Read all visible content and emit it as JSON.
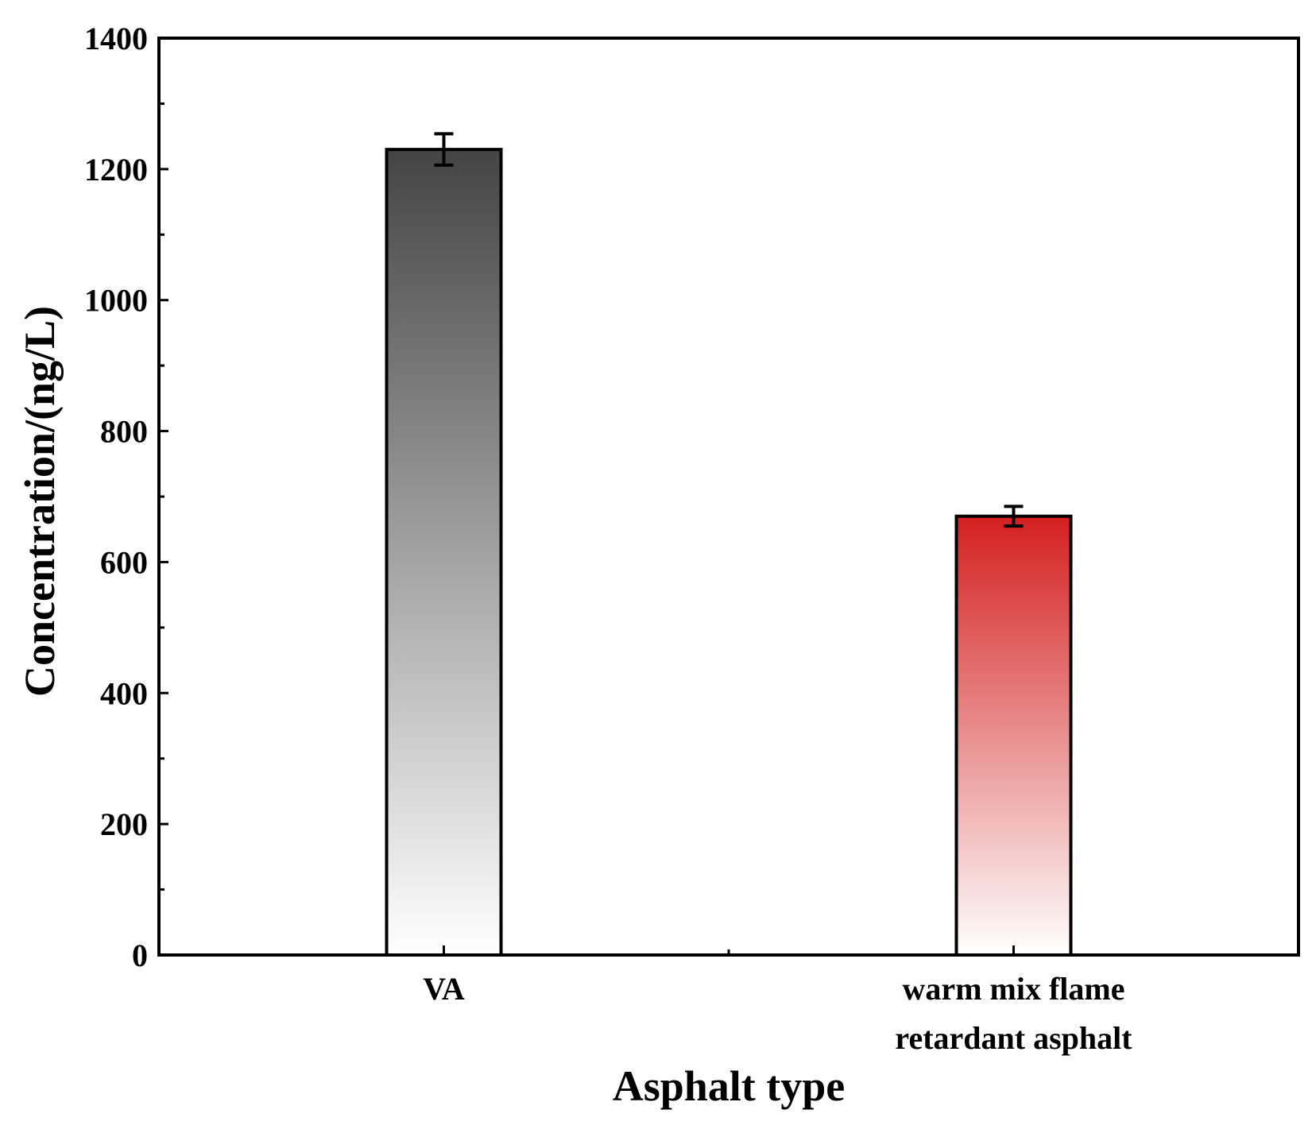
{
  "chart_data": {
    "type": "bar",
    "categories": [
      "VA",
      "warm mix flame retardant asphalt"
    ],
    "category_label_lines": [
      [
        "VA"
      ],
      [
        "warm mix flame",
        "retardant asphalt"
      ]
    ],
    "values": [
      1230,
      670
    ],
    "error": [
      24,
      15
    ],
    "xlabel": "Asphalt type",
    "ylabel": "Concentration/(ng/L)",
    "ylim": [
      0,
      1400
    ],
    "yticks": [
      "0",
      "200",
      "400",
      "600",
      "800",
      "1000",
      "1200",
      "1400"
    ],
    "grid": false,
    "legend": "none",
    "bar_colors": [
      {
        "top": "#444444",
        "bottom": "#ffffff"
      },
      {
        "top": "#d42020",
        "bottom": "#ffffff"
      }
    ],
    "axis_color": "#000000"
  }
}
